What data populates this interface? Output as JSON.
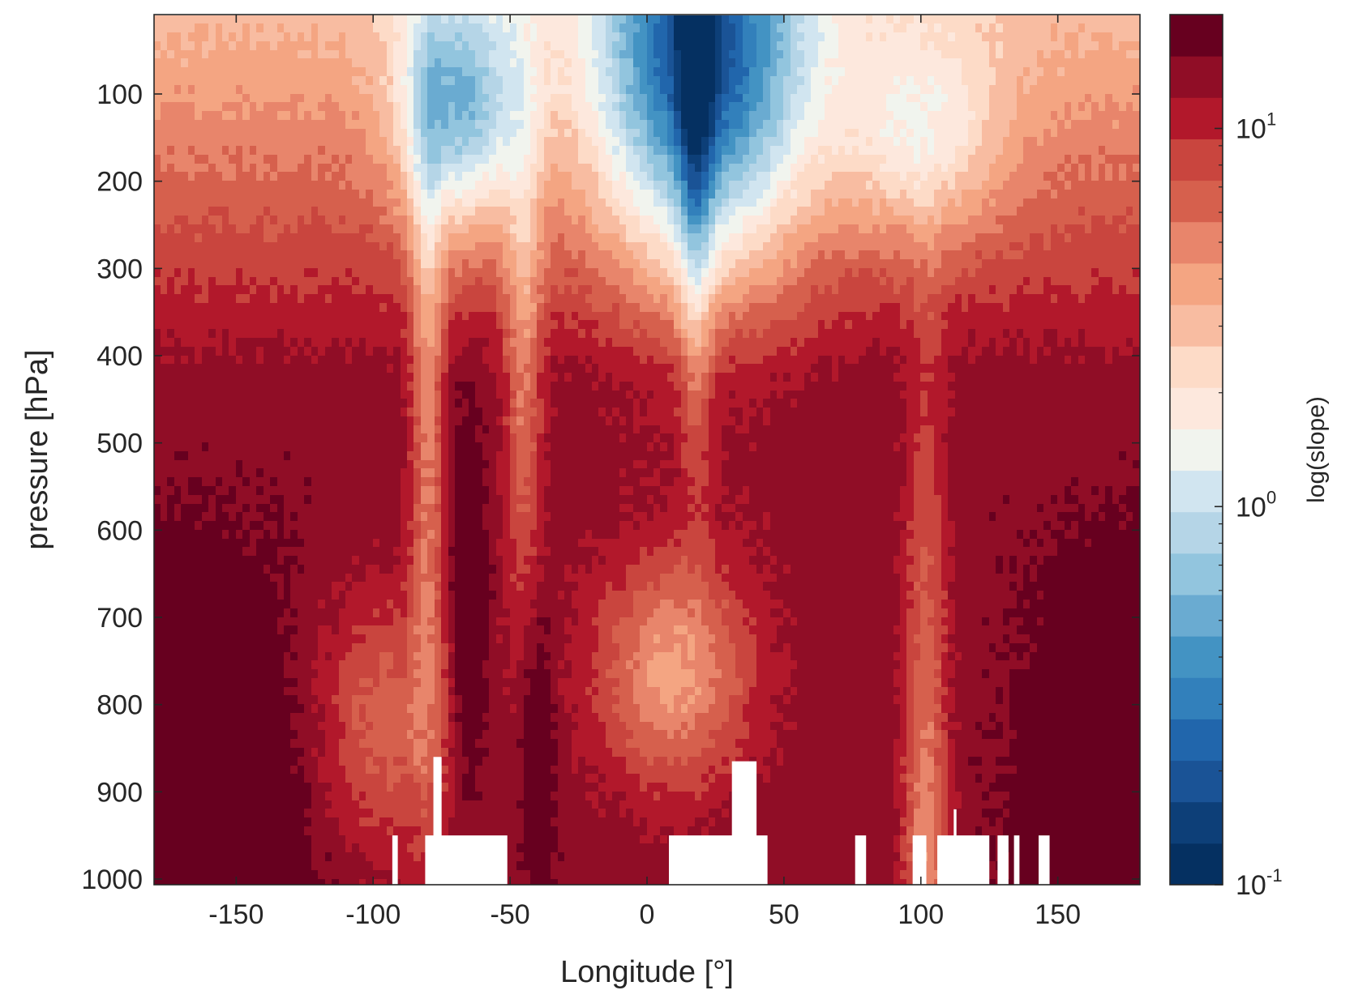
{
  "chart_data": {
    "type": "heatmap",
    "xlabel": "Longitude [°]",
    "ylabel": "pressure [hPa]",
    "xlim": [
      -180,
      180
    ],
    "ylim": [
      10,
      1000
    ],
    "y_reversed": true,
    "x_ticks": [
      -150,
      -100,
      -50,
      0,
      50,
      100,
      150
    ],
    "x_tick_labels": [
      "-150",
      "-100",
      "-50",
      "0",
      "50",
      "100",
      "150"
    ],
    "y_ticks": [
      100,
      200,
      300,
      400,
      500,
      600,
      700,
      800,
      900,
      1000
    ],
    "y_tick_labels": [
      "100",
      "200",
      "300",
      "400",
      "500",
      "600",
      "700",
      "800",
      "900",
      "1000"
    ],
    "colorbar": {
      "label": "log(slope)",
      "scale": "log",
      "range": [
        0.1,
        20
      ],
      "ticks": [
        0.1,
        1,
        10
      ],
      "tick_labels": [
        {
          "base": "10",
          "exp": "-1"
        },
        {
          "base": "10",
          "exp": "0"
        },
        {
          "base": "10",
          "exp": "1"
        }
      ],
      "colors": [
        "#053061",
        "#0d3f78",
        "#1a5396",
        "#2166ac",
        "#3280bb",
        "#4393c3",
        "#6aabd1",
        "#92c5de",
        "#b5d5e7",
        "#d1e5f0",
        "#f1f4ee",
        "#fde8dd",
        "#fddbc7",
        "#f8bca1",
        "#f4a582",
        "#e8856b",
        "#d6604d",
        "#c9453e",
        "#b2182b",
        "#900d26",
        "#67001f"
      ]
    },
    "grid": false,
    "description_of_field": "Log of slope versus longitude and pressure; low values (blue) in upper levels with minimum near 20°E, high values (red) in lower troposphere; white gaps near surface where no data."
  }
}
